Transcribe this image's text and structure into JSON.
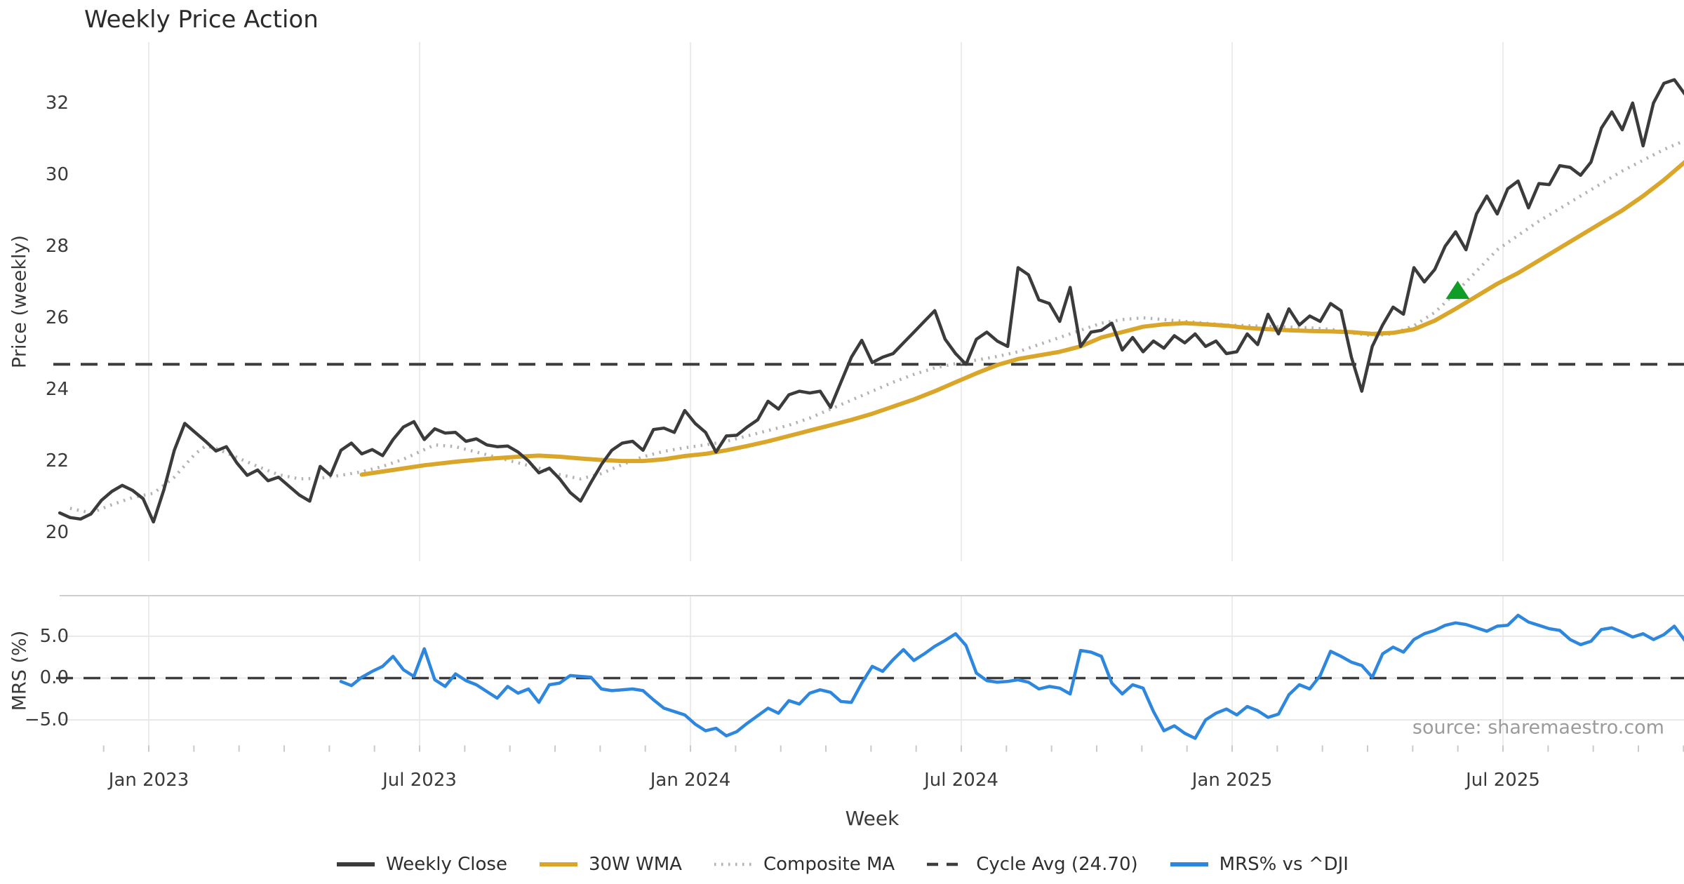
{
  "title": "Weekly Price Action",
  "x_axis": {
    "label": "Week",
    "tick_labels": [
      "Jan 2023",
      "Jul 2023",
      "Jan 2024",
      "Jul 2024",
      "Jan 2025",
      "Jul 2025"
    ],
    "tick_week_positions": [
      8.55,
      34.55,
      60.55,
      86.55,
      112.55,
      138.55
    ]
  },
  "price_panel": {
    "ylabel": "Price (weekly)",
    "yticks": [
      "32",
      "30",
      "28",
      "26",
      "24",
      "22",
      "20"
    ],
    "ytick_values": [
      32,
      30,
      28,
      26,
      24,
      22,
      20
    ]
  },
  "mrs_panel": {
    "ylabel": "MRS (%)",
    "yticks": [
      "5.0",
      "0.0",
      "−5.0"
    ],
    "ytick_values": [
      5,
      0,
      -5
    ]
  },
  "source": "source: sharemaestro.com",
  "legend": [
    {
      "label": "Weekly Close",
      "swatch": "solid",
      "color": "#3b3b3b"
    },
    {
      "label": "30W WMA",
      "swatch": "solid",
      "color": "#d9a62a"
    },
    {
      "label": "Composite MA",
      "swatch": "dotted",
      "color": "#b3b3b3"
    },
    {
      "label": "Cycle Avg (24.70)",
      "swatch": "dashed",
      "color": "#3d3d3d"
    },
    {
      "label": "MRS% vs ^DJI",
      "swatch": "solid",
      "color": "#2e87de"
    }
  ],
  "colors": {
    "close": "#3b3b3b",
    "wma": "#d9a62a",
    "composite": "#b3b3b3",
    "cycle_avg": "#3d3d3d",
    "mrs": "#2e87de",
    "marker": "#0f9d28",
    "gridline": "#ececec",
    "mrs_gridline": "#e8e8e8",
    "panel_border": "#cfcfcf",
    "tick_mark": "#c9c9c9"
  },
  "chart_data": [
    {
      "type": "line",
      "title": "Weekly Price Action",
      "xlabel": "Week",
      "ylabel": "Price (weekly)",
      "x_unit": "week_index_from_2022-11",
      "xlim": [
        0,
        156.8
      ],
      "ylim": [
        19.2,
        33.7
      ],
      "grid": "vertical-only",
      "cycle_avg_value": 24.7,
      "series": [
        {
          "name": "Weekly Close",
          "start_week": 0,
          "step": 1,
          "values": [
            20.55,
            20.42,
            20.38,
            20.52,
            20.9,
            21.15,
            21.32,
            21.18,
            20.95,
            20.3,
            21.2,
            22.3,
            23.05,
            22.8,
            22.55,
            22.28,
            22.4,
            21.95,
            21.6,
            21.75,
            21.45,
            21.55,
            21.3,
            21.05,
            20.88,
            21.85,
            21.6,
            22.3,
            22.5,
            22.2,
            22.32,
            22.15,
            22.6,
            22.95,
            23.1,
            22.6,
            22.9,
            22.78,
            22.8,
            22.55,
            22.62,
            22.45,
            22.4,
            22.42,
            22.25,
            22.0,
            21.67,
            21.8,
            21.5,
            21.12,
            20.88,
            21.4,
            21.9,
            22.3,
            22.5,
            22.55,
            22.3,
            22.88,
            22.92,
            22.8,
            23.41,
            23.05,
            22.8,
            22.25,
            22.7,
            22.72,
            22.95,
            23.15,
            23.67,
            23.45,
            23.85,
            23.95,
            23.9,
            23.95,
            23.5,
            24.2,
            24.9,
            25.37,
            24.75,
            24.9,
            25.0,
            25.3,
            25.6,
            25.9,
            26.2,
            25.4,
            25.0,
            24.7,
            25.4,
            25.6,
            25.35,
            25.2,
            27.4,
            27.2,
            26.5,
            26.4,
            25.9,
            26.85,
            25.2,
            25.6,
            25.65,
            25.85,
            25.1,
            25.45,
            25.05,
            25.35,
            25.15,
            25.5,
            25.3,
            25.55,
            25.2,
            25.35,
            25.0,
            25.05,
            25.55,
            25.25,
            26.1,
            25.55,
            26.25,
            25.8,
            26.05,
            25.9,
            26.4,
            26.2,
            24.9,
            23.95,
            25.2,
            25.8,
            26.3,
            26.1,
            27.4,
            27.0,
            27.35,
            28.0,
            28.4,
            27.9,
            28.9,
            29.4,
            28.9,
            29.6,
            29.82,
            29.07,
            29.75,
            29.72,
            30.25,
            30.2,
            29.98,
            30.35,
            31.3,
            31.75,
            31.25,
            32.0,
            30.8,
            32.0,
            32.55,
            32.65,
            32.25
          ]
        },
        {
          "name": "30W WMA",
          "points": [
            [
              29,
              21.62
            ],
            [
              32,
              21.75
            ],
            [
              35,
              21.88
            ],
            [
              38,
              21.98
            ],
            [
              41,
              22.06
            ],
            [
              44,
              22.12
            ],
            [
              46,
              22.15
            ],
            [
              48,
              22.12
            ],
            [
              50,
              22.07
            ],
            [
              52,
              22.03
            ],
            [
              54,
              22.0
            ],
            [
              56,
              22.0
            ],
            [
              58,
              22.05
            ],
            [
              60,
              22.14
            ],
            [
              62,
              22.2
            ],
            [
              64,
              22.3
            ],
            [
              66,
              22.42
            ],
            [
              68,
              22.55
            ],
            [
              70,
              22.7
            ],
            [
              72,
              22.85
            ],
            [
              74,
              23.0
            ],
            [
              76,
              23.15
            ],
            [
              78,
              23.32
            ],
            [
              80,
              23.52
            ],
            [
              82,
              23.72
            ],
            [
              84,
              23.95
            ],
            [
              86,
              24.2
            ],
            [
              88,
              24.45
            ],
            [
              90,
              24.68
            ],
            [
              92,
              24.85
            ],
            [
              94,
              24.95
            ],
            [
              96,
              25.05
            ],
            [
              98,
              25.2
            ],
            [
              100,
              25.45
            ],
            [
              102,
              25.6
            ],
            [
              104,
              25.75
            ],
            [
              106,
              25.82
            ],
            [
              108,
              25.85
            ],
            [
              110,
              25.82
            ],
            [
              112,
              25.78
            ],
            [
              114,
              25.72
            ],
            [
              116,
              25.68
            ],
            [
              118,
              25.65
            ],
            [
              120,
              25.63
            ],
            [
              122,
              25.62
            ],
            [
              124,
              25.6
            ],
            [
              126,
              25.55
            ],
            [
              128,
              25.58
            ],
            [
              130,
              25.68
            ],
            [
              132,
              25.92
            ],
            [
              134,
              26.25
            ],
            [
              136,
              26.6
            ],
            [
              138,
              26.95
            ],
            [
              140,
              27.25
            ],
            [
              142,
              27.6
            ],
            [
              144,
              27.95
            ],
            [
              146,
              28.3
            ],
            [
              148,
              28.65
            ],
            [
              150,
              29.0
            ],
            [
              152,
              29.4
            ],
            [
              154,
              29.85
            ],
            [
              156,
              30.35
            ],
            [
              156.8,
              30.55
            ]
          ]
        },
        {
          "name": "Composite MA",
          "points": [
            [
              1,
              20.68
            ],
            [
              3,
              20.55
            ],
            [
              5,
              20.78
            ],
            [
              7,
              20.98
            ],
            [
              9,
              21.1
            ],
            [
              11,
              21.55
            ],
            [
              13,
              22.2
            ],
            [
              14,
              22.42
            ],
            [
              15,
              22.35
            ],
            [
              17,
              22.1
            ],
            [
              19,
              21.85
            ],
            [
              21,
              21.62
            ],
            [
              23,
              21.5
            ],
            [
              25,
              21.52
            ],
            [
              27,
              21.6
            ],
            [
              29,
              21.7
            ],
            [
              31,
              21.85
            ],
            [
              33,
              22.05
            ],
            [
              35,
              22.32
            ],
            [
              36,
              22.45
            ],
            [
              38,
              22.4
            ],
            [
              40,
              22.25
            ],
            [
              42,
              22.1
            ],
            [
              44,
              21.95
            ],
            [
              46,
              21.8
            ],
            [
              48,
              21.62
            ],
            [
              50,
              21.5
            ],
            [
              52,
              21.65
            ],
            [
              54,
              21.9
            ],
            [
              56,
              22.12
            ],
            [
              58,
              22.27
            ],
            [
              60,
              22.37
            ],
            [
              62,
              22.45
            ],
            [
              64,
              22.55
            ],
            [
              66,
              22.7
            ],
            [
              68,
              22.85
            ],
            [
              70,
              23.0
            ],
            [
              72,
              23.2
            ],
            [
              74,
              23.45
            ],
            [
              76,
              23.7
            ],
            [
              78,
              23.95
            ],
            [
              80,
              24.2
            ],
            [
              82,
              24.42
            ],
            [
              84,
              24.6
            ],
            [
              86,
              24.72
            ],
            [
              88,
              24.82
            ],
            [
              90,
              24.92
            ],
            [
              92,
              25.05
            ],
            [
              94,
              25.25
            ],
            [
              96,
              25.45
            ],
            [
              98,
              25.65
            ],
            [
              100,
              25.85
            ],
            [
              102,
              25.95
            ],
            [
              104,
              26.0
            ],
            [
              106,
              25.95
            ],
            [
              108,
              25.9
            ],
            [
              110,
              25.85
            ],
            [
              112,
              25.8
            ],
            [
              114,
              25.78
            ],
            [
              116,
              25.76
            ],
            [
              118,
              25.74
            ],
            [
              120,
              25.72
            ],
            [
              122,
              25.68
            ],
            [
              124,
              25.58
            ],
            [
              126,
              25.5
            ],
            [
              128,
              25.55
            ],
            [
              130,
              25.78
            ],
            [
              132,
              26.15
            ],
            [
              134,
              26.7
            ],
            [
              136,
              27.3
            ],
            [
              138,
              27.9
            ],
            [
              140,
              28.3
            ],
            [
              142,
              28.7
            ],
            [
              144,
              29.05
            ],
            [
              146,
              29.4
            ],
            [
              148,
              29.75
            ],
            [
              150,
              30.1
            ],
            [
              152,
              30.4
            ],
            [
              154,
              30.7
            ],
            [
              156,
              30.95
            ],
            [
              156.8,
              31.05
            ]
          ]
        },
        {
          "name": "Cycle Avg (24.70)",
          "constant": 24.7
        }
      ],
      "marker": {
        "name": "buy-signal",
        "shape": "triangle-up",
        "week": 134.2,
        "price": 26.78
      }
    },
    {
      "type": "line",
      "ylabel": "MRS (%)",
      "xlim": [
        0,
        156.8
      ],
      "ylim": [
        -8.05,
        9.85
      ],
      "zero_line": 0.0,
      "series": [
        {
          "name": "MRS% vs ^DJI",
          "start_week": 27,
          "step": 1,
          "values": [
            -0.4,
            -0.9,
            0.1,
            0.8,
            1.4,
            2.6,
            1.0,
            0.2,
            3.5,
            -0.2,
            -1.0,
            0.5,
            -0.3,
            -0.8,
            -1.6,
            -2.4,
            -1.0,
            -1.8,
            -1.3,
            -2.9,
            -0.8,
            -0.6,
            0.3,
            0.2,
            0.1,
            -1.3,
            -1.5,
            -1.4,
            -1.3,
            -1.5,
            -2.6,
            -3.6,
            -4.0,
            -4.4,
            -5.5,
            -6.3,
            -6.0,
            -6.9,
            -6.4,
            -5.4,
            -4.5,
            -3.6,
            -4.2,
            -2.7,
            -3.1,
            -1.8,
            -1.4,
            -1.7,
            -2.8,
            -2.9,
            -0.6,
            1.4,
            0.8,
            2.2,
            3.4,
            2.1,
            2.9,
            3.8,
            4.5,
            5.3,
            3.9,
            0.6,
            -0.3,
            -0.5,
            -0.4,
            -0.2,
            -0.5,
            -1.3,
            -1.0,
            -1.2,
            -1.9,
            3.3,
            3.1,
            2.6,
            -0.6,
            -1.9,
            -0.8,
            -1.2,
            -4.0,
            -6.3,
            -5.7,
            -6.6,
            -7.2,
            -5.0,
            -4.2,
            -3.7,
            -4.4,
            -3.4,
            -3.9,
            -4.7,
            -4.3,
            -2.0,
            -0.8,
            -1.3,
            0.3,
            3.2,
            2.6,
            1.9,
            1.5,
            0.1,
            2.9,
            3.7,
            3.1,
            4.6,
            5.3,
            5.7,
            6.3,
            6.6,
            6.4,
            6.0,
            5.6,
            6.2,
            6.3,
            7.5,
            6.7,
            6.3,
            5.9,
            5.7,
            4.6,
            4.0,
            4.4,
            5.8,
            6.0,
            5.5,
            4.9,
            5.3,
            4.6,
            5.2,
            6.2,
            4.5
          ]
        }
      ]
    }
  ]
}
